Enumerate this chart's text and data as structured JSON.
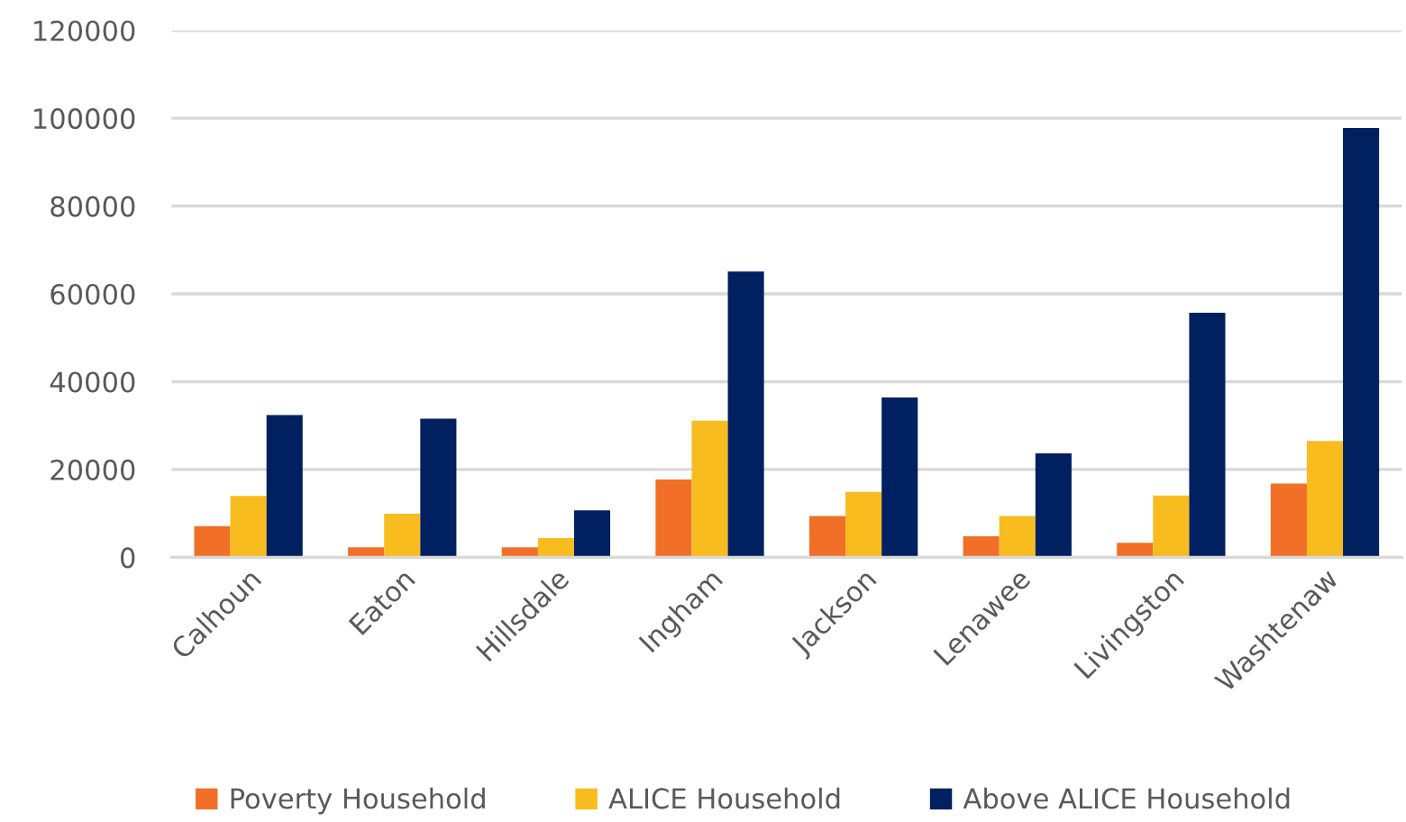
{
  "chart_data": {
    "type": "bar",
    "categories": [
      "Calhoun",
      "Eaton",
      "Hillsdale",
      "Ingham",
      "Jackson",
      "Lenawee",
      "Livingston",
      "Washtenaw"
    ],
    "series": [
      {
        "name": "Poverty Household",
        "color": "#f26f28",
        "values": [
          7100,
          2300,
          2300,
          17700,
          9400,
          4800,
          3300,
          16800
        ]
      },
      {
        "name": "ALICE Household",
        "color": "#f8bc1e",
        "values": [
          14000,
          9900,
          4400,
          31100,
          14900,
          9400,
          14100,
          26500
        ]
      },
      {
        "name": "Above ALICE Household",
        "color": "#002060",
        "values": [
          32400,
          31600,
          10700,
          65100,
          36400,
          23700,
          55700,
          97800
        ]
      }
    ],
    "ylim": [
      0,
      120000
    ],
    "yticks": [
      0,
      20000,
      40000,
      60000,
      80000,
      100000,
      120000
    ],
    "grid": "y",
    "legend": "bottom"
  }
}
